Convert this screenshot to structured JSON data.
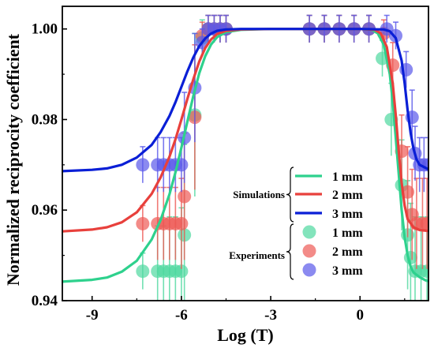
{
  "chart_data": {
    "type": "scatter",
    "xlabel": "Log (T)",
    "ylabel": "Normalized reciprocity coefficient",
    "xlim": [
      -10.0,
      2.3
    ],
    "ylim": [
      0.94,
      1.005
    ],
    "xticks": [
      -9,
      -6,
      -3,
      0
    ],
    "xtick_labels": [
      "-9",
      "-6",
      "-3",
      "0"
    ],
    "yticks": [
      0.94,
      0.96,
      0.98,
      1.0
    ],
    "ytick_labels": [
      "0.94",
      "0.96",
      "0.98",
      "1.00"
    ],
    "grid": false,
    "legend_position": "right-center",
    "legend": {
      "simulations_label": "Simulations",
      "experiments_label": "Experiments",
      "simulation_entries": [
        "1 mm",
        "2 mm",
        "3 mm"
      ],
      "experiment_entries": [
        "1 mm",
        "2 mm",
        "3 mm"
      ]
    },
    "simulations": [
      {
        "name": "1 mm",
        "color": "#2ed18d",
        "points": [
          [
            -10.0,
            0.9442
          ],
          [
            -9.0,
            0.9446
          ],
          [
            -8.5,
            0.9451
          ],
          [
            -8.0,
            0.9464
          ],
          [
            -7.5,
            0.9488
          ],
          [
            -7.0,
            0.9535
          ],
          [
            -6.7,
            0.9578
          ],
          [
            -6.4,
            0.9635
          ],
          [
            -6.2,
            0.9683
          ],
          [
            -6.0,
            0.9738
          ],
          [
            -5.8,
            0.9795
          ],
          [
            -5.6,
            0.9852
          ],
          [
            -5.4,
            0.9902
          ],
          [
            -5.2,
            0.994
          ],
          [
            -5.0,
            0.9966
          ],
          [
            -4.8,
            0.9982
          ],
          [
            -4.5,
            0.9993
          ],
          [
            -4.0,
            0.9998
          ],
          [
            -3.0,
            1.0
          ],
          [
            0.0,
            1.0
          ],
          [
            0.4,
            0.9998
          ],
          [
            0.6,
            0.999
          ],
          [
            0.8,
            0.9965
          ],
          [
            1.0,
            0.99
          ],
          [
            1.1,
            0.984
          ],
          [
            1.2,
            0.976
          ],
          [
            1.3,
            0.968
          ],
          [
            1.4,
            0.96
          ],
          [
            1.5,
            0.954
          ],
          [
            1.6,
            0.95
          ],
          [
            1.7,
            0.9475
          ],
          [
            1.8,
            0.9462
          ],
          [
            2.0,
            0.9452
          ],
          [
            2.2,
            0.9445
          ],
          [
            2.3,
            0.9443
          ]
        ]
      },
      {
        "name": "2 mm",
        "color": "#e8403c",
        "points": [
          [
            -10.0,
            0.9553
          ],
          [
            -9.0,
            0.9557
          ],
          [
            -8.5,
            0.9562
          ],
          [
            -8.0,
            0.9573
          ],
          [
            -7.5,
            0.9595
          ],
          [
            -7.0,
            0.9636
          ],
          [
            -6.7,
            0.9672
          ],
          [
            -6.4,
            0.9718
          ],
          [
            -6.2,
            0.9756
          ],
          [
            -6.0,
            0.98
          ],
          [
            -5.8,
            0.9845
          ],
          [
            -5.6,
            0.9889
          ],
          [
            -5.4,
            0.9928
          ],
          [
            -5.2,
            0.9958
          ],
          [
            -5.0,
            0.9977
          ],
          [
            -4.8,
            0.9989
          ],
          [
            -4.5,
            0.9996
          ],
          [
            -4.0,
            0.9999
          ],
          [
            -3.0,
            1.0
          ],
          [
            0.0,
            1.0
          ],
          [
            0.5,
            0.9998
          ],
          [
            0.7,
            0.999
          ],
          [
            0.9,
            0.996
          ],
          [
            1.1,
            0.988
          ],
          [
            1.2,
            0.981
          ],
          [
            1.3,
            0.973
          ],
          [
            1.4,
            0.966
          ],
          [
            1.5,
            0.961
          ],
          [
            1.6,
            0.958
          ],
          [
            1.8,
            0.9562
          ],
          [
            2.0,
            0.9556
          ],
          [
            2.3,
            0.9554
          ]
        ]
      },
      {
        "name": "3 mm",
        "color": "#0a1fd6",
        "points": [
          [
            -10.0,
            0.9686
          ],
          [
            -9.0,
            0.9689
          ],
          [
            -8.5,
            0.9692
          ],
          [
            -8.0,
            0.97
          ],
          [
            -7.5,
            0.9716
          ],
          [
            -7.0,
            0.9744
          ],
          [
            -6.7,
            0.9772
          ],
          [
            -6.4,
            0.9808
          ],
          [
            -6.2,
            0.9838
          ],
          [
            -6.0,
            0.9872
          ],
          [
            -5.8,
            0.9906
          ],
          [
            -5.6,
            0.9937
          ],
          [
            -5.4,
            0.9962
          ],
          [
            -5.2,
            0.9979
          ],
          [
            -5.0,
            0.999
          ],
          [
            -4.8,
            0.9996
          ],
          [
            -4.5,
            0.9999
          ],
          [
            -4.0,
            1.0
          ],
          [
            0.0,
            1.0
          ],
          [
            0.8,
            0.9999
          ],
          [
            1.0,
            0.9995
          ],
          [
            1.2,
            0.998
          ],
          [
            1.4,
            0.993
          ],
          [
            1.5,
            0.988
          ],
          [
            1.6,
            0.982
          ],
          [
            1.7,
            0.977
          ],
          [
            1.8,
            0.9735
          ],
          [
            1.9,
            0.9712
          ],
          [
            2.0,
            0.97
          ],
          [
            2.3,
            0.969
          ]
        ]
      }
    ],
    "experiments": [
      {
        "name": "1 mm",
        "color": "#4fd9a0",
        "points": [
          [
            -7.3,
            0.9465,
            0.004
          ],
          [
            -6.8,
            0.9465,
            0.01
          ],
          [
            -6.6,
            0.9465,
            0.01
          ],
          [
            -6.4,
            0.9465,
            0.012
          ],
          [
            -6.2,
            0.9465,
            0.012
          ],
          [
            -6.0,
            0.9465,
            0.014
          ],
          [
            -5.9,
            0.9545,
            0.02
          ],
          [
            -5.55,
            0.981,
            0.018
          ],
          [
            -5.3,
            0.998,
            0.004
          ],
          [
            -5.1,
            1.0,
            0.003
          ],
          [
            -4.9,
            1.0,
            0.003
          ],
          [
            -4.7,
            1.0,
            0.003
          ],
          [
            -4.5,
            1.0,
            0.003
          ],
          [
            -1.7,
            1.0,
            0.003
          ],
          [
            -1.2,
            1.0,
            0.003
          ],
          [
            -0.7,
            1.0,
            0.003
          ],
          [
            -0.2,
            1.0,
            0.003
          ],
          [
            0.3,
            1.0,
            0.003
          ],
          [
            0.75,
            0.9935,
            0.004
          ],
          [
            1.05,
            0.98,
            0.008
          ],
          [
            1.4,
            0.9655,
            0.01
          ],
          [
            1.6,
            0.9545,
            0.012
          ],
          [
            1.7,
            0.9495,
            0.012
          ],
          [
            1.85,
            0.9465,
            0.012
          ],
          [
            2.05,
            0.9465,
            0.012
          ],
          [
            2.25,
            0.9465,
            0.012
          ]
        ]
      },
      {
        "name": "2 mm",
        "color": "#ee5a55",
        "points": [
          [
            -7.3,
            0.957,
            0.004
          ],
          [
            -6.8,
            0.957,
            0.008
          ],
          [
            -6.6,
            0.957,
            0.008
          ],
          [
            -6.4,
            0.957,
            0.008
          ],
          [
            -6.2,
            0.957,
            0.008
          ],
          [
            -6.0,
            0.957,
            0.01
          ],
          [
            -5.9,
            0.963,
            0.014
          ],
          [
            -5.55,
            0.9805,
            0.016
          ],
          [
            -5.3,
            0.9985,
            0.003
          ],
          [
            -5.1,
            1.0,
            0.003
          ],
          [
            -4.9,
            1.0,
            0.003
          ],
          [
            -4.7,
            1.0,
            0.003
          ],
          [
            -4.5,
            1.0,
            0.003
          ],
          [
            -1.7,
            1.0,
            0.003
          ],
          [
            -1.2,
            1.0,
            0.003
          ],
          [
            -0.7,
            1.0,
            0.003
          ],
          [
            -0.2,
            1.0,
            0.003
          ],
          [
            0.3,
            1.0,
            0.003
          ],
          [
            0.8,
            0.999,
            0.003
          ],
          [
            1.1,
            0.992,
            0.005
          ],
          [
            1.4,
            0.973,
            0.008
          ],
          [
            1.6,
            0.964,
            0.01
          ],
          [
            1.75,
            0.959,
            0.01
          ],
          [
            1.9,
            0.957,
            0.01
          ],
          [
            2.1,
            0.957,
            0.01
          ],
          [
            2.25,
            0.957,
            0.01
          ]
        ]
      },
      {
        "name": "3 mm",
        "color": "#5a58ea",
        "points": [
          [
            -7.3,
            0.97,
            0.004
          ],
          [
            -6.8,
            0.97,
            0.006
          ],
          [
            -6.6,
            0.97,
            0.006
          ],
          [
            -6.4,
            0.97,
            0.006
          ],
          [
            -6.2,
            0.97,
            0.006
          ],
          [
            -6.0,
            0.97,
            0.006
          ],
          [
            -5.9,
            0.976,
            0.01
          ],
          [
            -5.55,
            0.987,
            0.012
          ],
          [
            -5.3,
            0.997,
            0.003
          ],
          [
            -5.1,
            1.0,
            0.003
          ],
          [
            -4.9,
            1.0,
            0.003
          ],
          [
            -4.7,
            1.0,
            0.003
          ],
          [
            -4.5,
            1.0,
            0.003
          ],
          [
            -1.7,
            1.0,
            0.003
          ],
          [
            -1.2,
            1.0,
            0.003
          ],
          [
            -0.7,
            1.0,
            0.003
          ],
          [
            -0.2,
            1.0,
            0.003
          ],
          [
            0.3,
            1.0,
            0.003
          ],
          [
            0.9,
            1.0,
            0.003
          ],
          [
            1.2,
            0.9985,
            0.003
          ],
          [
            1.55,
            0.991,
            0.004
          ],
          [
            1.75,
            0.9805,
            0.006
          ],
          [
            1.85,
            0.9725,
            0.006
          ],
          [
            2.0,
            0.97,
            0.006
          ],
          [
            2.15,
            0.97,
            0.006
          ],
          [
            2.3,
            0.97,
            0.006
          ]
        ]
      }
    ]
  }
}
